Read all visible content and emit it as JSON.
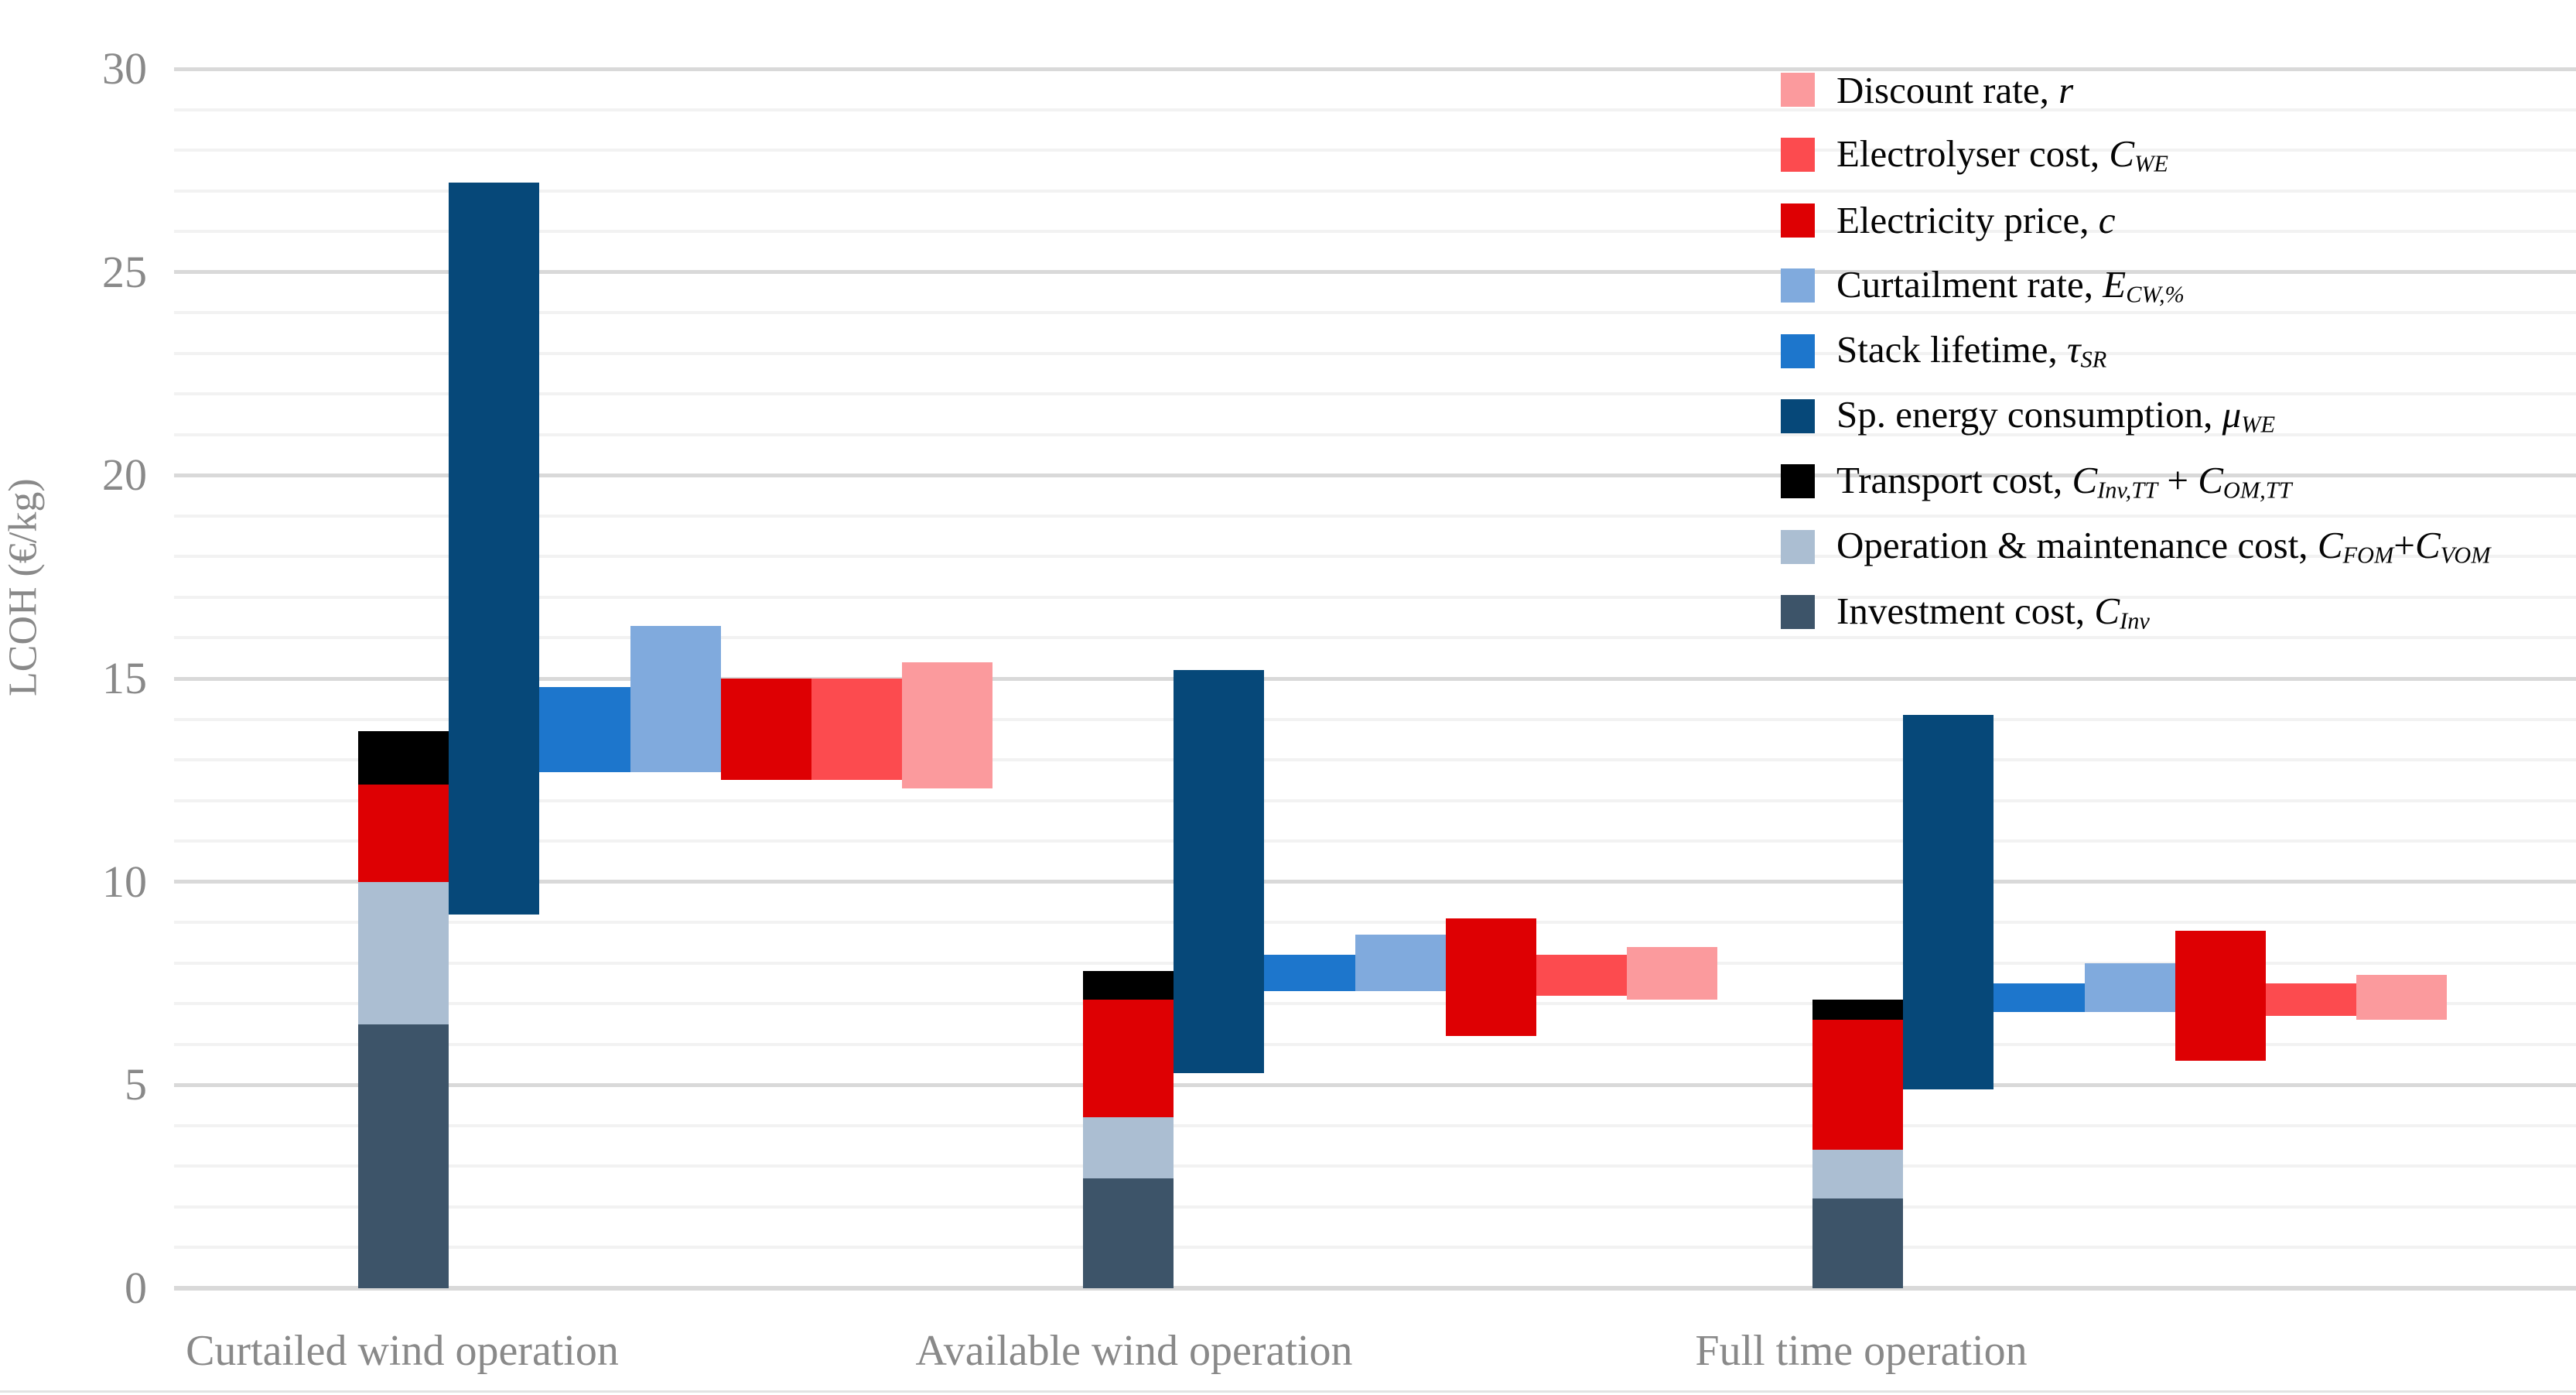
{
  "figure_title": "",
  "axes": {
    "y_title": "LCOH (€/kg)",
    "y_tick_labels": [
      "0",
      "5",
      "10",
      "15",
      "20",
      "25",
      "30"
    ]
  },
  "colors": {
    "background": "#ffffff",
    "minor_grid": "#f2f2f2",
    "major_grid": "#d9d9d9",
    "axis_text": "#898989",
    "discount_rate": "#FB9A9D",
    "electrolyser_cost": "#FC4B4F",
    "electricity_price": "#DE0003",
    "curtailment_rate": "#80AADD",
    "stack_lifetime": "#1D76CC",
    "sp_energy_consumption": "#064879",
    "transport_cost": "#000000",
    "operation_maintenance_cost": "#ABBED2",
    "investment_cost": "#3D5469"
  },
  "legend": [
    {
      "name": "discount-rate",
      "color": "#FB9A9D",
      "parts": [
        {
          "t": "Discount rate, "
        },
        {
          "i": "r"
        }
      ]
    },
    {
      "name": "electrolyser-cost",
      "color": "#FC4B4F",
      "parts": [
        {
          "t": "Electrolyser cost, "
        },
        {
          "i": "C"
        },
        {
          "s": "WE"
        }
      ]
    },
    {
      "name": "electricity-price",
      "color": "#DE0003",
      "parts": [
        {
          "t": "Electricity price, "
        },
        {
          "i": "c"
        }
      ]
    },
    {
      "name": "curtailment-rate",
      "color": "#80AADD",
      "parts": [
        {
          "t": "Curtailment rate, "
        },
        {
          "i": "E"
        },
        {
          "s": "CW,%"
        }
      ]
    },
    {
      "name": "stack-lifetime",
      "color": "#1D76CC",
      "parts": [
        {
          "t": "Stack lifetime, "
        },
        {
          "i": "τ"
        },
        {
          "s": "SR"
        }
      ]
    },
    {
      "name": "sp-energy-consumption",
      "color": "#064879",
      "parts": [
        {
          "t": "Sp. energy consumption, "
        },
        {
          "i": "μ"
        },
        {
          "s": "WE"
        }
      ]
    },
    {
      "name": "transport-cost",
      "color": "#000000",
      "parts": [
        {
          "t": "Transport cost, "
        },
        {
          "i": "C"
        },
        {
          "s": "Inv,TT"
        },
        {
          "t": " + "
        },
        {
          "i": "C"
        },
        {
          "s": "OM,TT"
        }
      ]
    },
    {
      "name": "operation-maintenance-cost",
      "color": "#ABBED2",
      "parts": [
        {
          "t": "Operation & maintenance cost, "
        },
        {
          "i": "C"
        },
        {
          "s": "FOM"
        },
        {
          "t": "+"
        },
        {
          "i": "C"
        },
        {
          "s": "VOM"
        }
      ]
    },
    {
      "name": "investment-cost",
      "color": "#3D5469",
      "parts": [
        {
          "t": "Investment cost, "
        },
        {
          "i": "C"
        },
        {
          "s": "Inv"
        }
      ]
    }
  ],
  "chart_data": {
    "type": "bar",
    "title": "",
    "xlabel": "",
    "ylabel": "LCOH (€/kg)",
    "ylim": [
      0,
      31.7
    ],
    "yticks": [
      0,
      5,
      10,
      15,
      20,
      25,
      30
    ],
    "grid": {
      "minor_step": 1,
      "major_step": 5,
      "minor_on": true,
      "major_on": true
    },
    "legend_position": "top-right",
    "categories": [
      "Curtailed wind operation",
      "Available wind operation",
      "Full time operation"
    ],
    "stacked_series": [
      {
        "name": "Investment cost, C_Inv",
        "color": "#3D5469",
        "values": [
          6.5,
          2.7,
          2.2
        ]
      },
      {
        "name": "Operation & maintenance cost, C_FOM+C_VOM",
        "color": "#ABBED2",
        "values": [
          3.5,
          1.5,
          1.2
        ]
      },
      {
        "name": "Electricity price, c",
        "color": "#DE0003",
        "values": [
          2.4,
          2.9,
          3.2
        ]
      },
      {
        "name": "Transport cost, C_Inv,TT + C_OM,TT",
        "color": "#000000",
        "values": [
          1.3,
          0.7,
          0.5
        ]
      }
    ],
    "stack_totals": [
      13.7,
      7.8,
      7.1
    ],
    "range_series": [
      {
        "name": "Sp. energy consumption, μ_WE",
        "color": "#064879",
        "low": [
          9.2,
          5.3,
          4.9
        ],
        "high": [
          27.2,
          15.2,
          14.1
        ]
      },
      {
        "name": "Stack lifetime, τ_SR",
        "color": "#1D76CC",
        "low": [
          12.7,
          7.3,
          6.8
        ],
        "high": [
          14.8,
          8.2,
          7.5
        ]
      },
      {
        "name": "Curtailment rate, E_CW,%",
        "color": "#80AADD",
        "low": [
          12.7,
          7.3,
          6.8
        ],
        "high": [
          16.3,
          8.7,
          8.0
        ]
      },
      {
        "name": "Electricity price, c",
        "color": "#DE0003",
        "low": [
          12.5,
          6.2,
          5.6
        ],
        "high": [
          15.0,
          9.1,
          8.8
        ]
      },
      {
        "name": "Electrolyser cost, C_WE",
        "color": "#FC4B4F",
        "low": [
          12.5,
          7.2,
          6.7
        ],
        "high": [
          15.0,
          8.2,
          7.5
        ]
      },
      {
        "name": "Discount rate, r",
        "color": "#FB9A9D",
        "low": [
          12.3,
          7.1,
          6.6
        ],
        "high": [
          15.4,
          8.4,
          7.7
        ]
      }
    ]
  }
}
